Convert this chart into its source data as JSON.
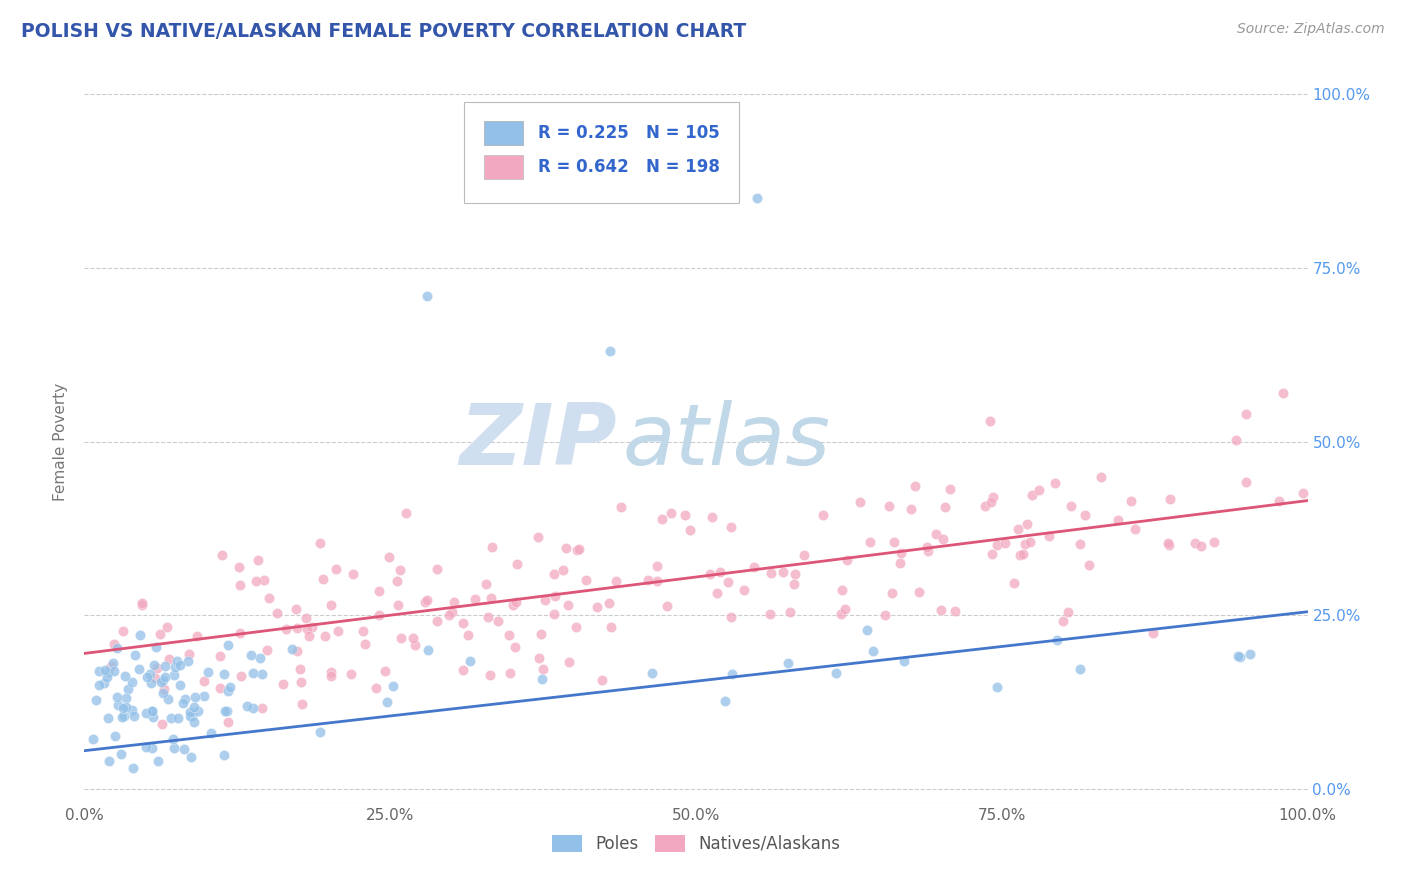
{
  "title": "POLISH VS NATIVE/ALASKAN FEMALE POVERTY CORRELATION CHART",
  "source": "Source: ZipAtlas.com",
  "ylabel": "Female Poverty",
  "blue_R": 0.225,
  "blue_N": 105,
  "pink_R": 0.642,
  "pink_N": 198,
  "blue_color": "#92c0e8",
  "pink_color": "#f2a8c0",
  "blue_line_color": "#4477cc",
  "pink_line_color": "#dd5577",
  "title_color": "#3355aa",
  "source_color": "#999999",
  "legend_text_color": "#3366cc",
  "watermark_zip": "ZIP",
  "watermark_atlas": "atlas",
  "watermark_zip_color": "#d0dff0",
  "watermark_atlas_color": "#c0d8e8",
  "xmin": 0.0,
  "xmax": 1.0,
  "ymin": -0.02,
  "ymax": 1.02,
  "x_ticks": [
    0.0,
    0.25,
    0.5,
    0.75,
    1.0
  ],
  "x_tick_labels": [
    "0.0%",
    "25.0%",
    "50.0%",
    "75.0%",
    "100.0%"
  ],
  "y_ticks": [
    0.0,
    0.25,
    0.5,
    0.75,
    1.0
  ],
  "y_tick_labels_right": [
    "0.0%",
    "25.0%",
    "50.0%",
    "75.0%",
    "100.0%"
  ],
  "blue_scatter_seed": 42,
  "pink_scatter_seed": 123,
  "blue_line_start_y": 0.055,
  "blue_line_end_y": 0.255,
  "pink_line_start_y": 0.195,
  "pink_line_end_y": 0.415
}
